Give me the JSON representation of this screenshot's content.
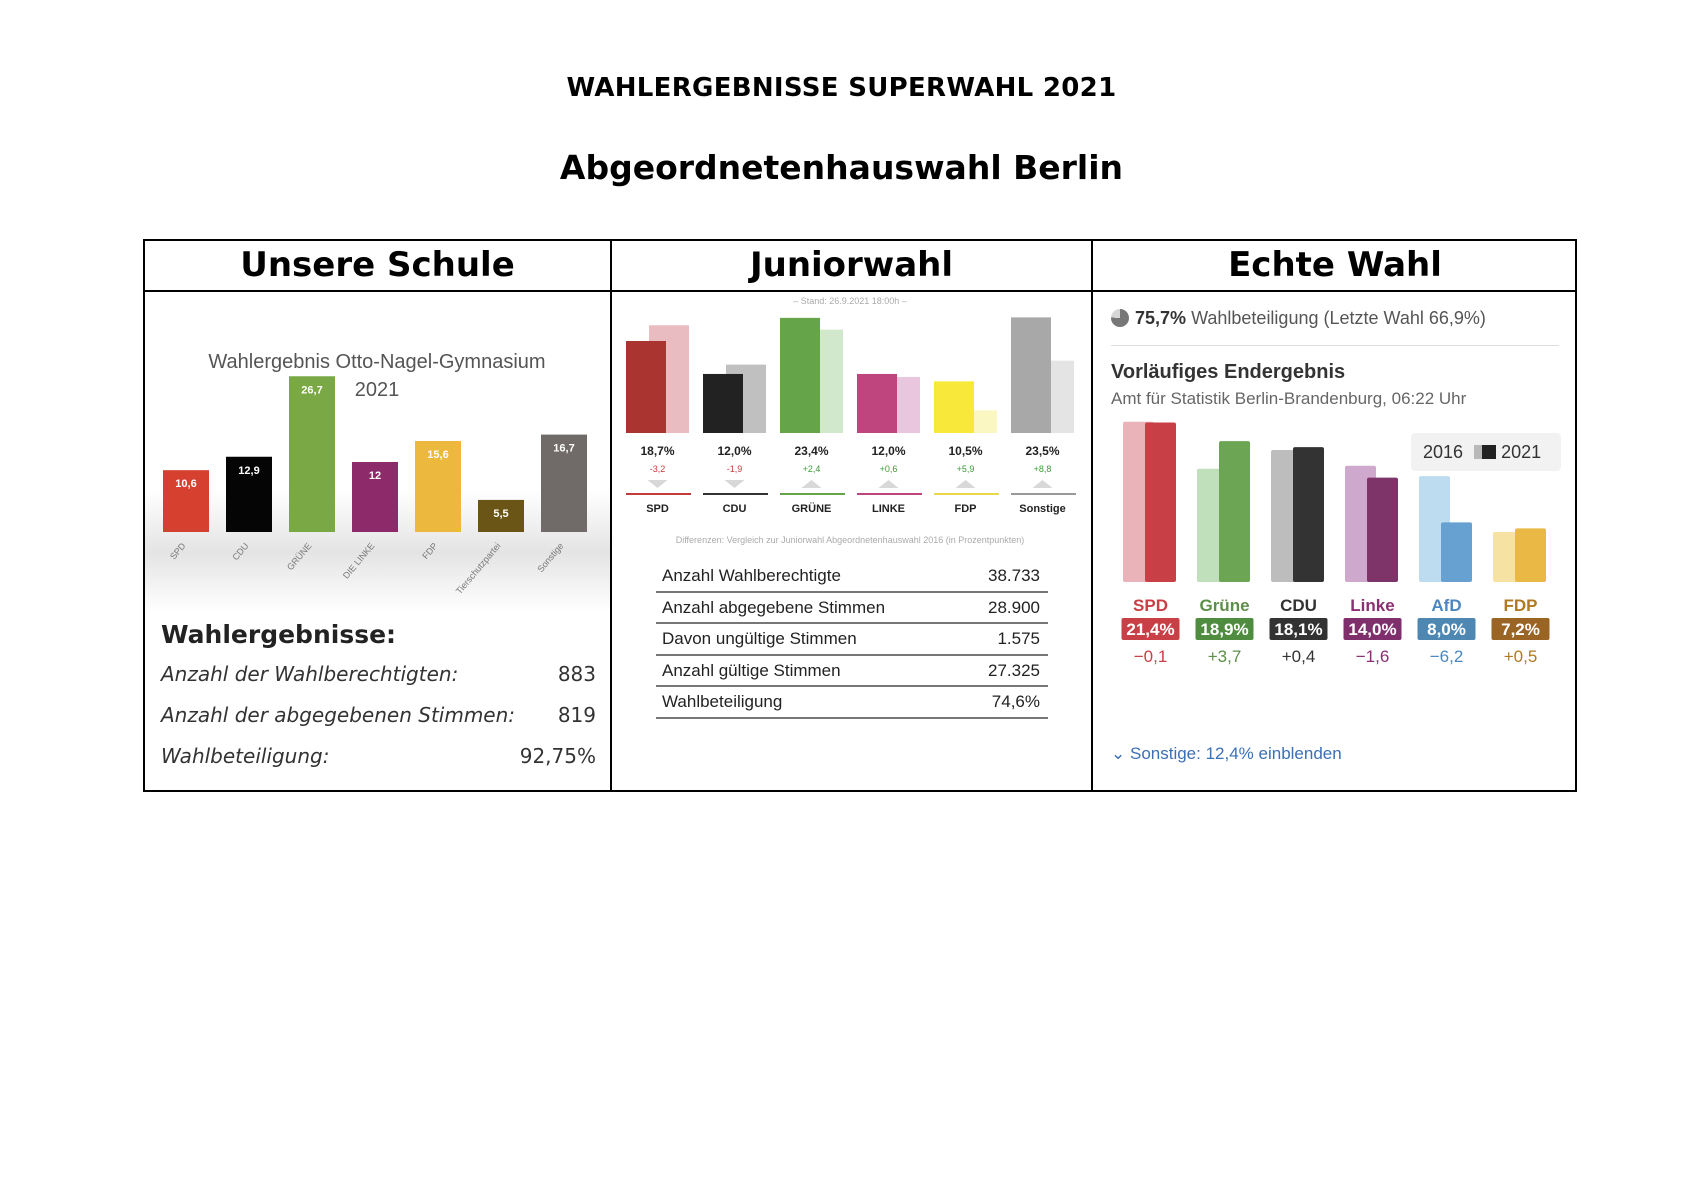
{
  "document": {
    "title": "WAHLERGEBNISSE SUPERWAHL 2021",
    "subtitle": "Abgeordnetenhauswahl Berlin"
  },
  "columns": [
    "Unsere Schule",
    "Juniorwahl",
    "Echte Wahl"
  ],
  "school": {
    "chart_title_line1": "Wahlergebnis Otto-Nagel-Gymnasium",
    "chart_title_line2": "2021",
    "results_heading": "Wahlergebnisse:",
    "stats": [
      {
        "label": "Anzahl der Wahlberechtigten:",
        "value": "883"
      },
      {
        "label": "Anzahl der abgegebenen Stimmen:",
        "value": "819"
      },
      {
        "label": "Wahlbeteiligung:",
        "value": "92,75%"
      }
    ]
  },
  "junior": {
    "stand": "– Stand: 26.9.2021 18:00h –",
    "footnote": "Differenzen: Vergleich zur Juniorwahl Abgeordnetenhauswahl 2016 (in Prozentpunkten)",
    "stats": [
      {
        "label": "Anzahl Wahlberechtigte",
        "value": "38.733"
      },
      {
        "label": "Anzahl abgegebene Stimmen",
        "value": "28.900"
      },
      {
        "label": "Davon ungültige Stimmen",
        "value": "1.575"
      },
      {
        "label": "Anzahl gültige Stimmen",
        "value": "27.325"
      },
      {
        "label": "Wahlbeteiligung",
        "value": "74,6%"
      }
    ]
  },
  "real": {
    "turnout_value": "75,7%",
    "turnout_text": "Wahlbeteiligung (Letzte Wahl 66,9%)",
    "heading": "Vorläufiges Endergebnis",
    "source": "Amt für Statistik Berlin-Brandenburg, 06:22 Uhr",
    "legend_2016": "2016",
    "legend_2021": "2021",
    "toggle": "Sonstige: 12,4% einblenden"
  },
  "chart_data": [
    {
      "type": "bar",
      "title": "Wahlergebnis Otto-Nagel-Gymnasium 2021",
      "categories": [
        "SPD",
        "CDU",
        "GRÜNE",
        "DIE LINKE",
        "FDP",
        "Tierschutzpartei",
        "Sonstige"
      ],
      "values": [
        10.6,
        12.9,
        26.7,
        12,
        15.6,
        5.5,
        16.7
      ],
      "value_labels": [
        "10,6",
        "12,9",
        "26,7",
        "12",
        "15,6",
        "5,5",
        "16,7"
      ],
      "colors": [
        "#d5402f",
        "#050505",
        "#79a845",
        "#8c2a6a",
        "#ecb83e",
        "#6a5416",
        "#706b69"
      ],
      "ylim": [
        0,
        30
      ]
    },
    {
      "type": "bar",
      "categories": [
        "SPD",
        "CDU",
        "GRÜNE",
        "LINKE",
        "FDP",
        "Sonstige"
      ],
      "series": [
        {
          "name": "2021",
          "values": [
            18.7,
            12.0,
            23.4,
            12.0,
            10.5,
            23.5
          ]
        },
        {
          "name": "2016",
          "values": [
            21.9,
            13.9,
            21.0,
            11.4,
            4.6,
            14.7
          ]
        }
      ],
      "value_labels": [
        "18,7%",
        "12,0%",
        "23,4%",
        "12,0%",
        "10,5%",
        "23,5%"
      ],
      "diff_labels": [
        "-3,2",
        "-1,9",
        "+2,4",
        "+0,6",
        "+5,9",
        "+8,8"
      ],
      "colors": [
        "#a93430",
        "#222222",
        "#66a44a",
        "#bf457e",
        "#f7e83a",
        "#a8a8a8"
      ],
      "colors_prev": [
        "#e8bcc0",
        "#c0c0c0",
        "#d2e8cc",
        "#e9c6dd",
        "#fbf7c3",
        "#e4e4e4"
      ],
      "diff_colors": [
        "#cc3a3a",
        "#cc3a3a",
        "#3a9a3a",
        "#3a9a3a",
        "#3a9a3a",
        "#3a9a3a"
      ],
      "line_colors": [
        "#c23a3a",
        "#333333",
        "#66a44a",
        "#bf457e",
        "#e8d84a",
        "#999999"
      ],
      "ylim": [
        0,
        25
      ]
    },
    {
      "type": "bar",
      "categories": [
        "SPD",
        "Grüne",
        "CDU",
        "Linke",
        "AfD",
        "FDP"
      ],
      "series": [
        {
          "name": "2016",
          "values": [
            21.5,
            15.2,
            17.7,
            15.6,
            14.2,
            6.7
          ]
        },
        {
          "name": "2021",
          "values": [
            21.4,
            18.9,
            18.1,
            14.0,
            8.0,
            7.2
          ]
        }
      ],
      "value_labels": [
        "21,4%",
        "18,9%",
        "18,1%",
        "14,0%",
        "8,0%",
        "7,2%"
      ],
      "diff_labels": [
        "−0,1",
        "+3,7",
        "+0,4",
        "−1,6",
        "−6,2",
        "+0,5"
      ],
      "colors": [
        "#c84046",
        "#6ca553",
        "#333333",
        "#7f3469",
        "#66a1d1",
        "#eab945"
      ],
      "colors_prev": [
        "#e9b3b9",
        "#bfe0bb",
        "#bdbdbd",
        "#cfa9cd",
        "#bddcf0",
        "#f6e2a3"
      ],
      "label_colors": [
        "#c84046",
        "#5e8f48",
        "#333333",
        "#8a2f73",
        "#4a87c0",
        "#b07a20"
      ],
      "badge_colors": [
        "#c84046",
        "#4f8c3f",
        "#333333",
        "#7f2f6c",
        "#4f87b3",
        "#9a6425"
      ],
      "diff_colors": [
        "#c84046",
        "#5e8f48",
        "#333333",
        "#8a2f73",
        "#4a87c0",
        "#b07a20"
      ],
      "ylim": [
        0,
        22
      ]
    }
  ]
}
